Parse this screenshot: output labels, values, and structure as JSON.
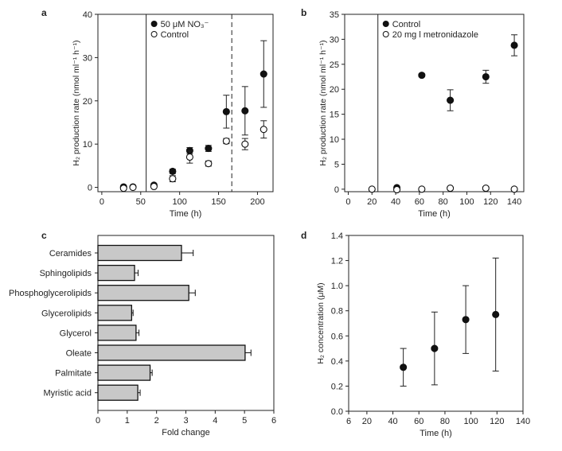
{
  "chart_data": [
    {
      "panel": "a",
      "type": "scatter",
      "xlabel": "Time (h)",
      "ylabel": "H₂ production rate (nmol ml⁻¹ h⁻¹)",
      "xlim": [
        -5,
        220
      ],
      "ylim": [
        -1,
        40
      ],
      "xticks": [
        0,
        50,
        100,
        150,
        200
      ],
      "yticks": [
        0,
        10,
        20,
        30,
        40
      ],
      "vlines": [
        {
          "x": 57,
          "style": "solid"
        },
        {
          "x": 167,
          "style": "dashed"
        }
      ],
      "legend": "top-left",
      "series": [
        {
          "name": "50 μM NO₃⁻",
          "marker": "filled",
          "points": [
            [
              28,
              0.1,
              0,
              0
            ],
            [
              40,
              0.1,
              0,
              0
            ],
            [
              67,
              0.5,
              0,
              0
            ],
            [
              91,
              3.7,
              0.5,
              0.5
            ],
            [
              113,
              8.5,
              0.7,
              0.7
            ],
            [
              137,
              9,
              0.7,
              0.7
            ],
            [
              160,
              17.5,
              3.8,
              3.8
            ],
            [
              184,
              17.7,
              5.6,
              5.6
            ],
            [
              208,
              26.2,
              7.7,
              7.7
            ]
          ]
        },
        {
          "name": "Control",
          "marker": "open",
          "points": [
            [
              28,
              -0.2,
              0,
              0
            ],
            [
              40,
              0,
              0,
              0
            ],
            [
              67,
              0.2,
              0,
              0
            ],
            [
              91,
              2,
              0.7,
              0.7
            ],
            [
              113,
              7,
              1.4,
              1.4
            ],
            [
              137,
              5.5,
              0.6,
              0.6
            ],
            [
              160,
              10.7,
              0.6,
              0.6
            ],
            [
              184,
              10,
              1.3,
              1.3
            ],
            [
              208,
              13.4,
              2,
              2
            ]
          ]
        }
      ]
    },
    {
      "panel": "b",
      "type": "scatter",
      "xlabel": "Time (h)",
      "ylabel": "H₂ production rate (nmol ml⁻¹ h⁻¹)",
      "xlim": [
        -3,
        148
      ],
      "ylim": [
        -0.5,
        35
      ],
      "xticks": [
        0,
        20,
        40,
        60,
        80,
        100,
        120,
        140
      ],
      "yticks": [
        0,
        5,
        10,
        15,
        20,
        25,
        30,
        35
      ],
      "vlines": [
        {
          "x": 25,
          "style": "solid"
        }
      ],
      "legend": "top-left",
      "series": [
        {
          "name": "Control",
          "marker": "filled",
          "points": [
            [
              41,
              0.3,
              0,
              0
            ],
            [
              62,
              22.8,
              0.3,
              0.3
            ],
            [
              86,
              17.8,
              2.1,
              2.1
            ],
            [
              116,
              22.5,
              1.3,
              1.3
            ],
            [
              140,
              28.8,
              2.1,
              2.1
            ]
          ]
        },
        {
          "name": "20 mg l metronidazole",
          "marker": "open",
          "points": [
            [
              20,
              0,
              0,
              0
            ],
            [
              41,
              -0.1,
              0,
              0
            ],
            [
              62,
              0,
              0,
              0
            ],
            [
              86,
              0.2,
              0.2,
              0.2
            ],
            [
              116,
              0.2,
              0.3,
              0.3
            ],
            [
              140,
              0,
              0,
              0
            ]
          ]
        }
      ]
    },
    {
      "panel": "c",
      "type": "bar",
      "orientation": "horizontal",
      "xlabel": "Fold change",
      "xlim": [
        0,
        6
      ],
      "xticks": [
        0,
        1,
        2,
        3,
        4,
        5,
        6
      ],
      "categories": [
        "Ceramides",
        "Sphingolipids",
        "Phosphoglycerolipids",
        "Glycerolipids",
        "Glycerol",
        "Oleate",
        "Palmitate",
        "Myristic acid"
      ],
      "values": [
        2.85,
        1.25,
        3.1,
        1.15,
        1.3,
        5.02,
        1.78,
        1.36
      ],
      "errors": [
        0.4,
        0.12,
        0.22,
        0.05,
        0.1,
        0.2,
        0.07,
        0.08
      ],
      "bar_color": "#c8c8c8"
    },
    {
      "panel": "d",
      "type": "scatter",
      "xlabel": "Time (h)",
      "ylabel": "H₂ concentration (μM)",
      "xlim": [
        6,
        140
      ],
      "ylim": [
        0,
        1.4
      ],
      "xticks": [
        6,
        20,
        40,
        60,
        80,
        100,
        120,
        140
      ],
      "yticks": [
        0.0,
        0.2,
        0.4,
        0.6,
        0.8,
        1.0,
        1.2,
        1.4
      ],
      "series": [
        {
          "marker": "filled",
          "points": [
            [
              48,
              0.35,
              0.15,
              0.15
            ],
            [
              72,
              0.5,
              0.29,
              0.29
            ],
            [
              96,
              0.73,
              0.27,
              0.27
            ],
            [
              119,
              0.77,
              0.45,
              0.45
            ]
          ]
        }
      ]
    }
  ]
}
